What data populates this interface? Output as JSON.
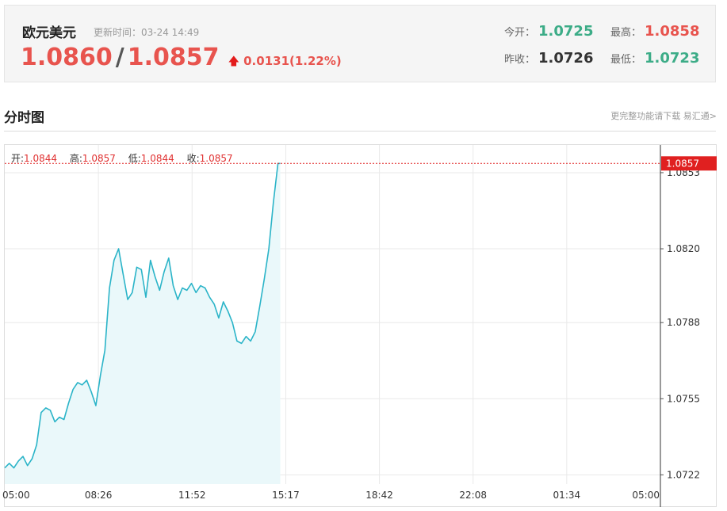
{
  "header": {
    "pair_name": "欧元美元",
    "update_label": "更新时间：03-24 14:49",
    "bid": "1.0860",
    "slash": "/",
    "ask": "1.0857",
    "change": "0.0131(1.22%)",
    "change_arrow": "up-arrow-icon"
  },
  "stats": {
    "open_label": "今开：",
    "open_value": "1.0725",
    "high_label": "最高：",
    "high_value": "1.0858",
    "prev_close_label": "昨收：",
    "prev_close_value": "1.0726",
    "low_label": "最低：",
    "low_value": "1.0723"
  },
  "section": {
    "title": "分时图",
    "download_link": "更完整功能请下载 易汇通>"
  },
  "ohlc": {
    "open_label": "开:",
    "open_value": "1.0844",
    "high_label": "高:",
    "high_value": "1.0857",
    "low_label": "低:",
    "low_value": "1.0844",
    "close_label": "收:",
    "close_value": "1.0857"
  },
  "colors": {
    "line": "#2bb4c8",
    "fill": "#eaf8fa",
    "up": "#e8544e",
    "down": "#3cac87",
    "marker": "#e02020"
  },
  "chart_data": {
    "type": "area",
    "x_ticks": [
      "05:00",
      "08:26",
      "11:52",
      "15:17",
      "18:42",
      "22:08",
      "01:34",
      "05:00"
    ],
    "y_ticks": [
      1.0722,
      1.0755,
      1.0788,
      1.082,
      1.0853
    ],
    "ylim": [
      1.0718,
      1.0865
    ],
    "x_range_minutes": [
      0,
      1440
    ],
    "current_price_label": "1.0857",
    "current_price": 1.0857,
    "grid": true,
    "x_minutes": [
      0,
      10,
      20,
      30,
      40,
      50,
      60,
      70,
      80,
      90,
      100,
      110,
      120,
      130,
      140,
      150,
      160,
      170,
      180,
      190,
      200,
      210,
      220,
      230,
      240,
      250,
      260,
      270,
      280,
      290,
      300,
      310,
      320,
      330,
      340,
      350,
      360,
      370,
      380,
      390,
      400,
      410,
      420,
      430,
      440,
      450,
      460,
      470,
      480,
      490,
      500,
      510,
      520,
      530,
      540,
      550,
      560,
      570,
      580,
      590,
      600,
      605
    ],
    "values": [
      1.0725,
      1.0727,
      1.0725,
      1.0728,
      1.073,
      1.0726,
      1.0729,
      1.0735,
      1.0749,
      1.0751,
      1.075,
      1.0745,
      1.0747,
      1.0746,
      1.0753,
      1.0759,
      1.0762,
      1.0761,
      1.0763,
      1.0758,
      1.0752,
      1.0765,
      1.0776,
      1.0803,
      1.0815,
      1.082,
      1.0809,
      1.0798,
      1.0801,
      1.0812,
      1.0811,
      1.0799,
      1.0815,
      1.0808,
      1.0802,
      1.081,
      1.0816,
      1.0804,
      1.0798,
      1.0803,
      1.0802,
      1.0805,
      1.0801,
      1.0804,
      1.0803,
      1.0799,
      1.0796,
      1.079,
      1.0797,
      1.0793,
      1.0788,
      1.078,
      1.0779,
      1.0782,
      1.078,
      1.0784,
      1.0795,
      1.0807,
      1.082,
      1.084,
      1.0857,
      1.0857
    ]
  }
}
